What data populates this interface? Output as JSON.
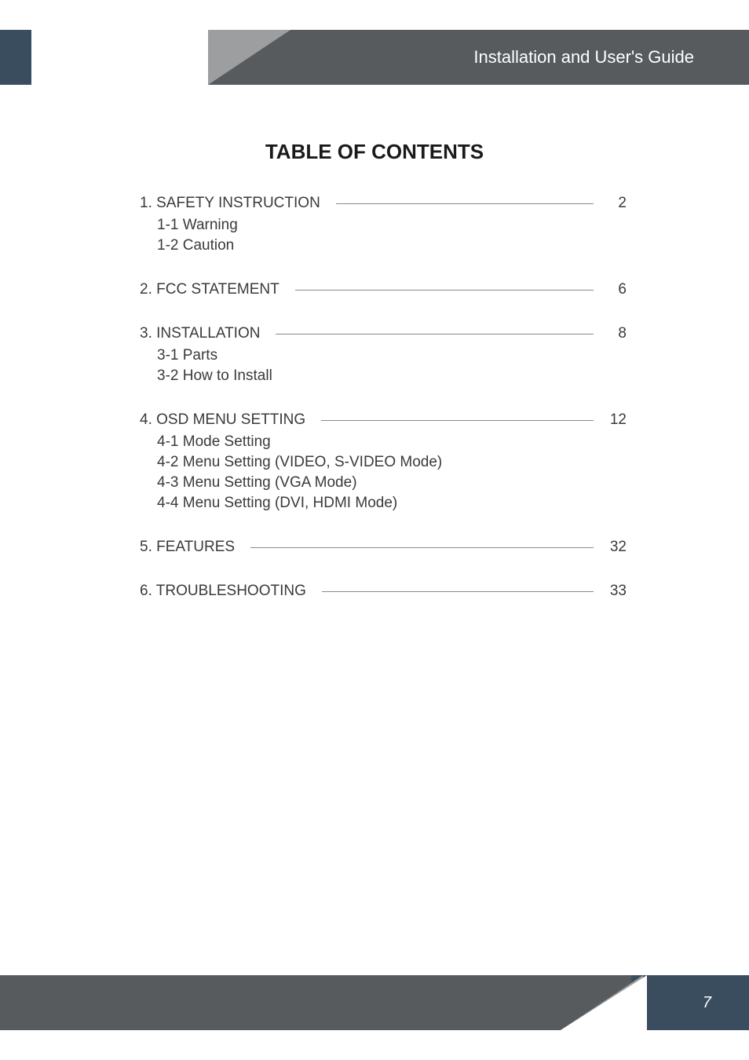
{
  "header": {
    "title": "Installation and User's Guide"
  },
  "page_title": "TABLE OF CONTENTS",
  "toc": [
    {
      "label": "1. SAFETY INSTRUCTION",
      "page": "2",
      "subs": [
        "1-1 Warning",
        "1-2 Caution"
      ]
    },
    {
      "label": "2. FCC STATEMENT",
      "page": "6",
      "subs": []
    },
    {
      "label": "3. INSTALLATION",
      "page": "8",
      "subs": [
        "3-1 Parts",
        "3-2 How to Install"
      ]
    },
    {
      "label": "4. OSD MENU SETTING",
      "page": "12",
      "subs": [
        "4-1 Mode Setting",
        "4-2 Menu Setting (VIDEO, S-VIDEO Mode)",
        "4-3 Menu Setting (VGA Mode)",
        "4-4 Menu Setting (DVI, HDMI Mode)"
      ]
    },
    {
      "label": "5. FEATURES",
      "page": "32",
      "subs": []
    },
    {
      "label": "6. TROUBLESHOOTING",
      "page": "33",
      "subs": []
    }
  ],
  "footer": {
    "page_number": "7"
  },
  "colors": {
    "header_bg": "#575b5e",
    "accent_bg": "#3a4d5f",
    "diagonal_gray": "#9c9e9f",
    "text": "#3a3a3a",
    "line": "#8a8a8a"
  }
}
